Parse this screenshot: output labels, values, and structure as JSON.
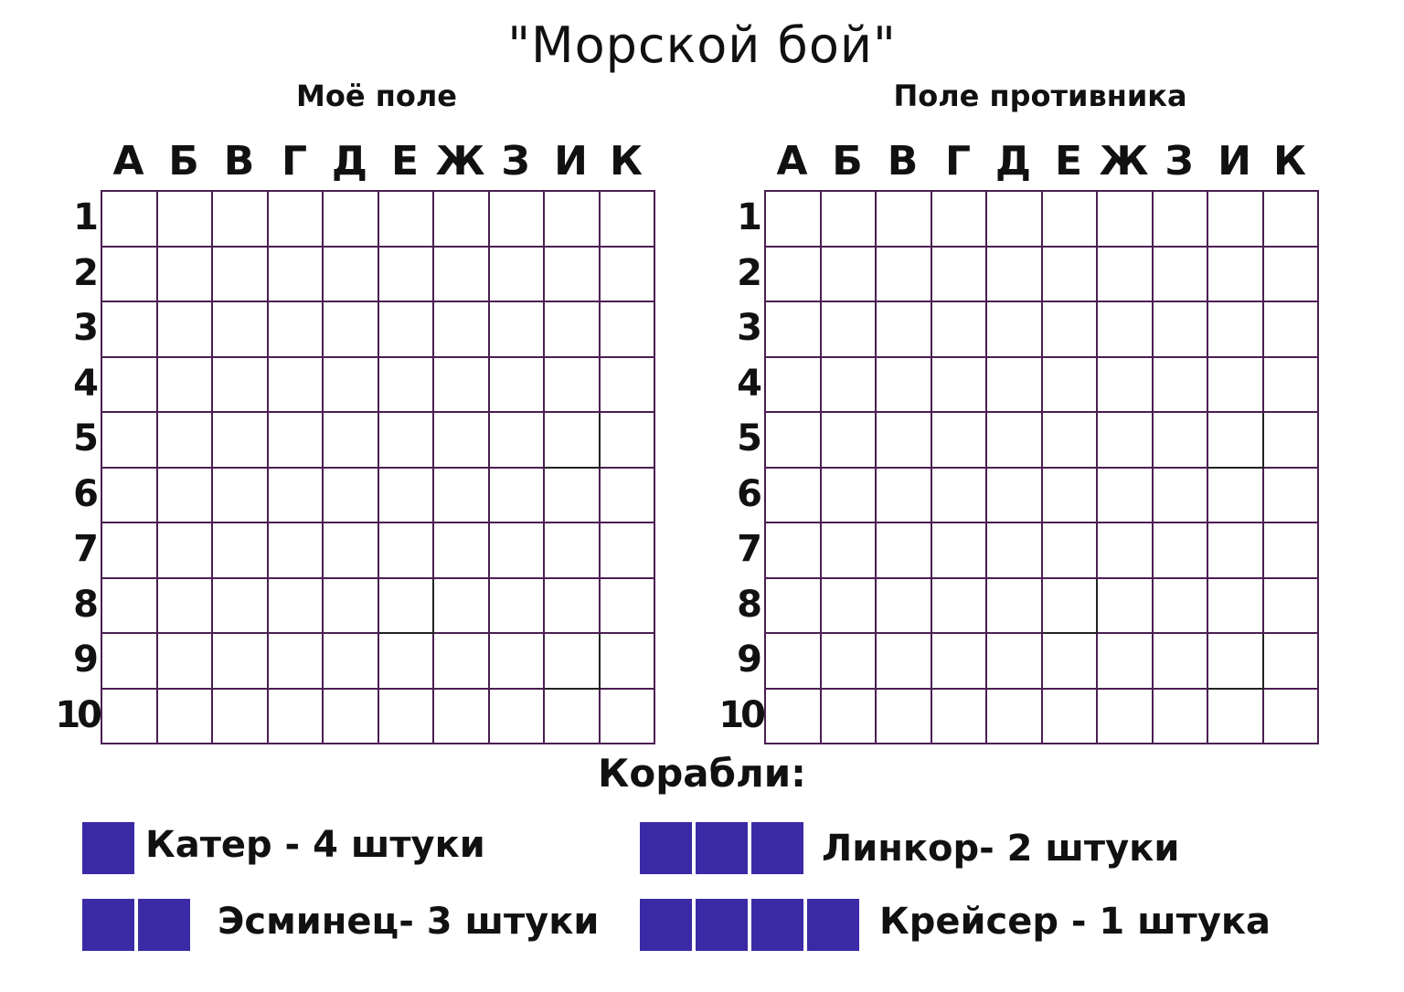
{
  "title": "\"Морской бой\"",
  "boards": [
    {
      "id": "my",
      "title": "Моё поле"
    },
    {
      "id": "enemy",
      "title": "Поле противника"
    }
  ],
  "columns": [
    "А",
    "Б",
    "В",
    "Г",
    "Д",
    "Е",
    "Ж",
    "З",
    "И",
    "К"
  ],
  "rows": [
    "1",
    "2",
    "3",
    "4",
    "5",
    "6",
    "7",
    "8",
    "9",
    "10"
  ],
  "ships_title": "Корабли:",
  "legend": [
    {
      "size": 1,
      "label": "Катер - 4 штуки"
    },
    {
      "size": 2,
      "label": "Эсминец- 3 штуки"
    },
    {
      "size": 3,
      "label": "Линкор- 2 штуки"
    },
    {
      "size": 4,
      "label": "Крейсер - 1 штука"
    }
  ],
  "colors": {
    "grid": "#4b1e52",
    "ship": "#3b2aa5"
  }
}
